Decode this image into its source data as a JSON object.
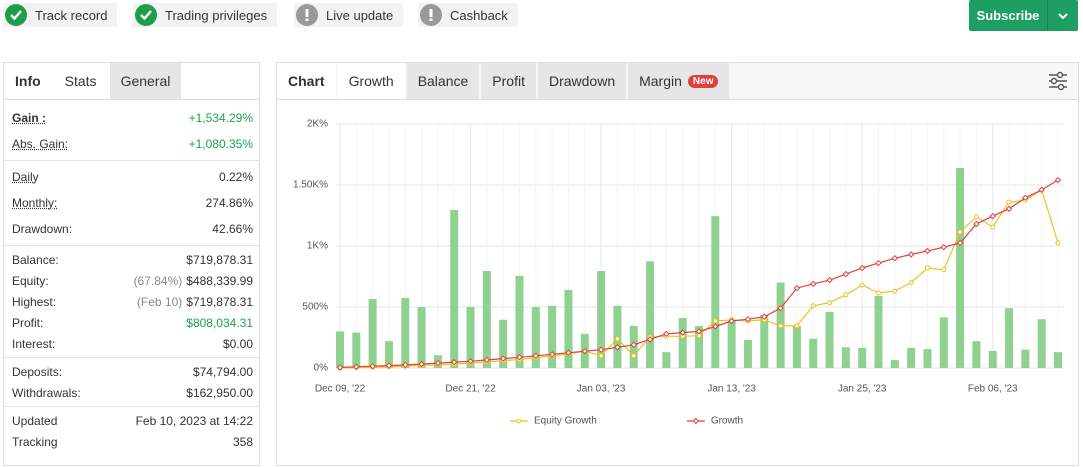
{
  "badges": [
    {
      "label": "Track record",
      "status": "ok"
    },
    {
      "label": "Trading privileges",
      "status": "ok"
    },
    {
      "label": "Live update",
      "status": "pending"
    },
    {
      "label": "Cashback",
      "status": "pending"
    }
  ],
  "subscribe": "Subscribe",
  "stats_tabs": {
    "title": "Info",
    "tabs": [
      "Stats",
      "General"
    ]
  },
  "stats": [
    [
      {
        "label": "Gain :",
        "value": "+1,534.29%",
        "color": "#1aa34a"
      },
      {
        "label": "Abs. Gain:",
        "value": "+1,080.35%",
        "color": "#1aa34a"
      }
    ],
    [
      {
        "label": "Daily",
        "value": "0.22%"
      },
      {
        "label": "Monthly:",
        "value": "274.86%"
      },
      {
        "label": "Drawdown:",
        "value": "42.66%"
      }
    ],
    [
      {
        "label": "Balance:",
        "value": "$719,878.31"
      },
      {
        "label": "Equity:",
        "note": "(67.84%)",
        "value": "$488,339.99"
      },
      {
        "label": "Highest:",
        "note": "(Feb 10)",
        "value": "$719,878.31"
      },
      {
        "label": "Profit:",
        "value": "$808,034.31",
        "color": "#1aa34a"
      },
      {
        "label": "Interest:",
        "value": "$0.00"
      }
    ],
    [
      {
        "label": "Deposits:",
        "value": "$74,794.00"
      },
      {
        "label": "Withdrawals:",
        "value": "$162,950.00"
      }
    ],
    [
      {
        "label": "Updated",
        "value": "Feb 10, 2023 at 14:22"
      },
      {
        "label": "Tracking",
        "value": "358"
      }
    ]
  ],
  "chart_tabs": {
    "title": "Chart",
    "tabs": [
      "Growth",
      "Balance",
      "Profit",
      "Drawdown",
      "Margin"
    ],
    "badge": "New"
  },
  "chart_data": {
    "type": "combo",
    "categories": [
      "Dec 09, '22",
      null,
      null,
      null,
      null,
      null,
      null,
      null,
      "Dec 21, '22",
      null,
      null,
      null,
      null,
      null,
      null,
      null,
      "Jan 03, '23",
      null,
      null,
      null,
      null,
      null,
      null,
      null,
      "Jan 13, '23",
      null,
      null,
      null,
      null,
      null,
      null,
      null,
      "Jan 25, '23",
      null,
      null,
      null,
      null,
      null,
      null,
      null,
      "Feb 06, '23",
      null,
      null,
      null,
      null
    ],
    "series": [
      {
        "type": "bar",
        "color": "#8fd18f",
        "values": [
          300,
          290,
          565,
          220,
          575,
          500,
          105,
          1295,
          500,
          795,
          395,
          755,
          500,
          510,
          640,
          280,
          795,
          510,
          345,
          875,
          130,
          410,
          345,
          1245,
          385,
          230,
          435,
          700,
          345,
          240,
          460,
          170,
          165,
          590,
          65,
          165,
          155,
          415,
          1640,
          220,
          140,
          490,
          150,
          400,
          130
        ]
      },
      {
        "type": "line",
        "name": "Equity Growth",
        "color": "#f2c01e",
        "marker": "circle",
        "values": [
          0,
          3,
          6,
          10,
          15,
          20,
          26,
          32,
          40,
          50,
          60,
          70,
          85,
          100,
          115,
          140,
          100,
          240,
          100,
          255,
          260,
          260,
          265,
          385,
          395,
          385,
          395,
          345,
          345,
          510,
          535,
          600,
          680,
          615,
          630,
          700,
          820,
          805,
          1115,
          1240,
          1155,
          1360,
          1375,
          1460,
          1025
        ]
      },
      {
        "type": "line",
        "name": "Growth",
        "color": "#e0403a",
        "marker": "diamond",
        "values": [
          5,
          10,
          15,
          20,
          25,
          32,
          40,
          48,
          55,
          66,
          77,
          88,
          100,
          112,
          125,
          138,
          150,
          170,
          190,
          235,
          280,
          290,
          300,
          340,
          385,
          400,
          420,
          490,
          655,
          690,
          720,
          770,
          820,
          860,
          900,
          930,
          960,
          990,
          1025,
          1180,
          1245,
          1305,
          1395,
          1460,
          1540
        ]
      }
    ],
    "ylim": [
      0,
      2000
    ],
    "yticks": [
      {
        "value": 0,
        "label": "0%"
      },
      {
        "value": 500,
        "label": "500%"
      },
      {
        "value": 1000,
        "label": "1K%"
      },
      {
        "value": 1500,
        "label": "1.50K%"
      },
      {
        "value": 2000,
        "label": "2K%"
      }
    ],
    "grid": true
  }
}
